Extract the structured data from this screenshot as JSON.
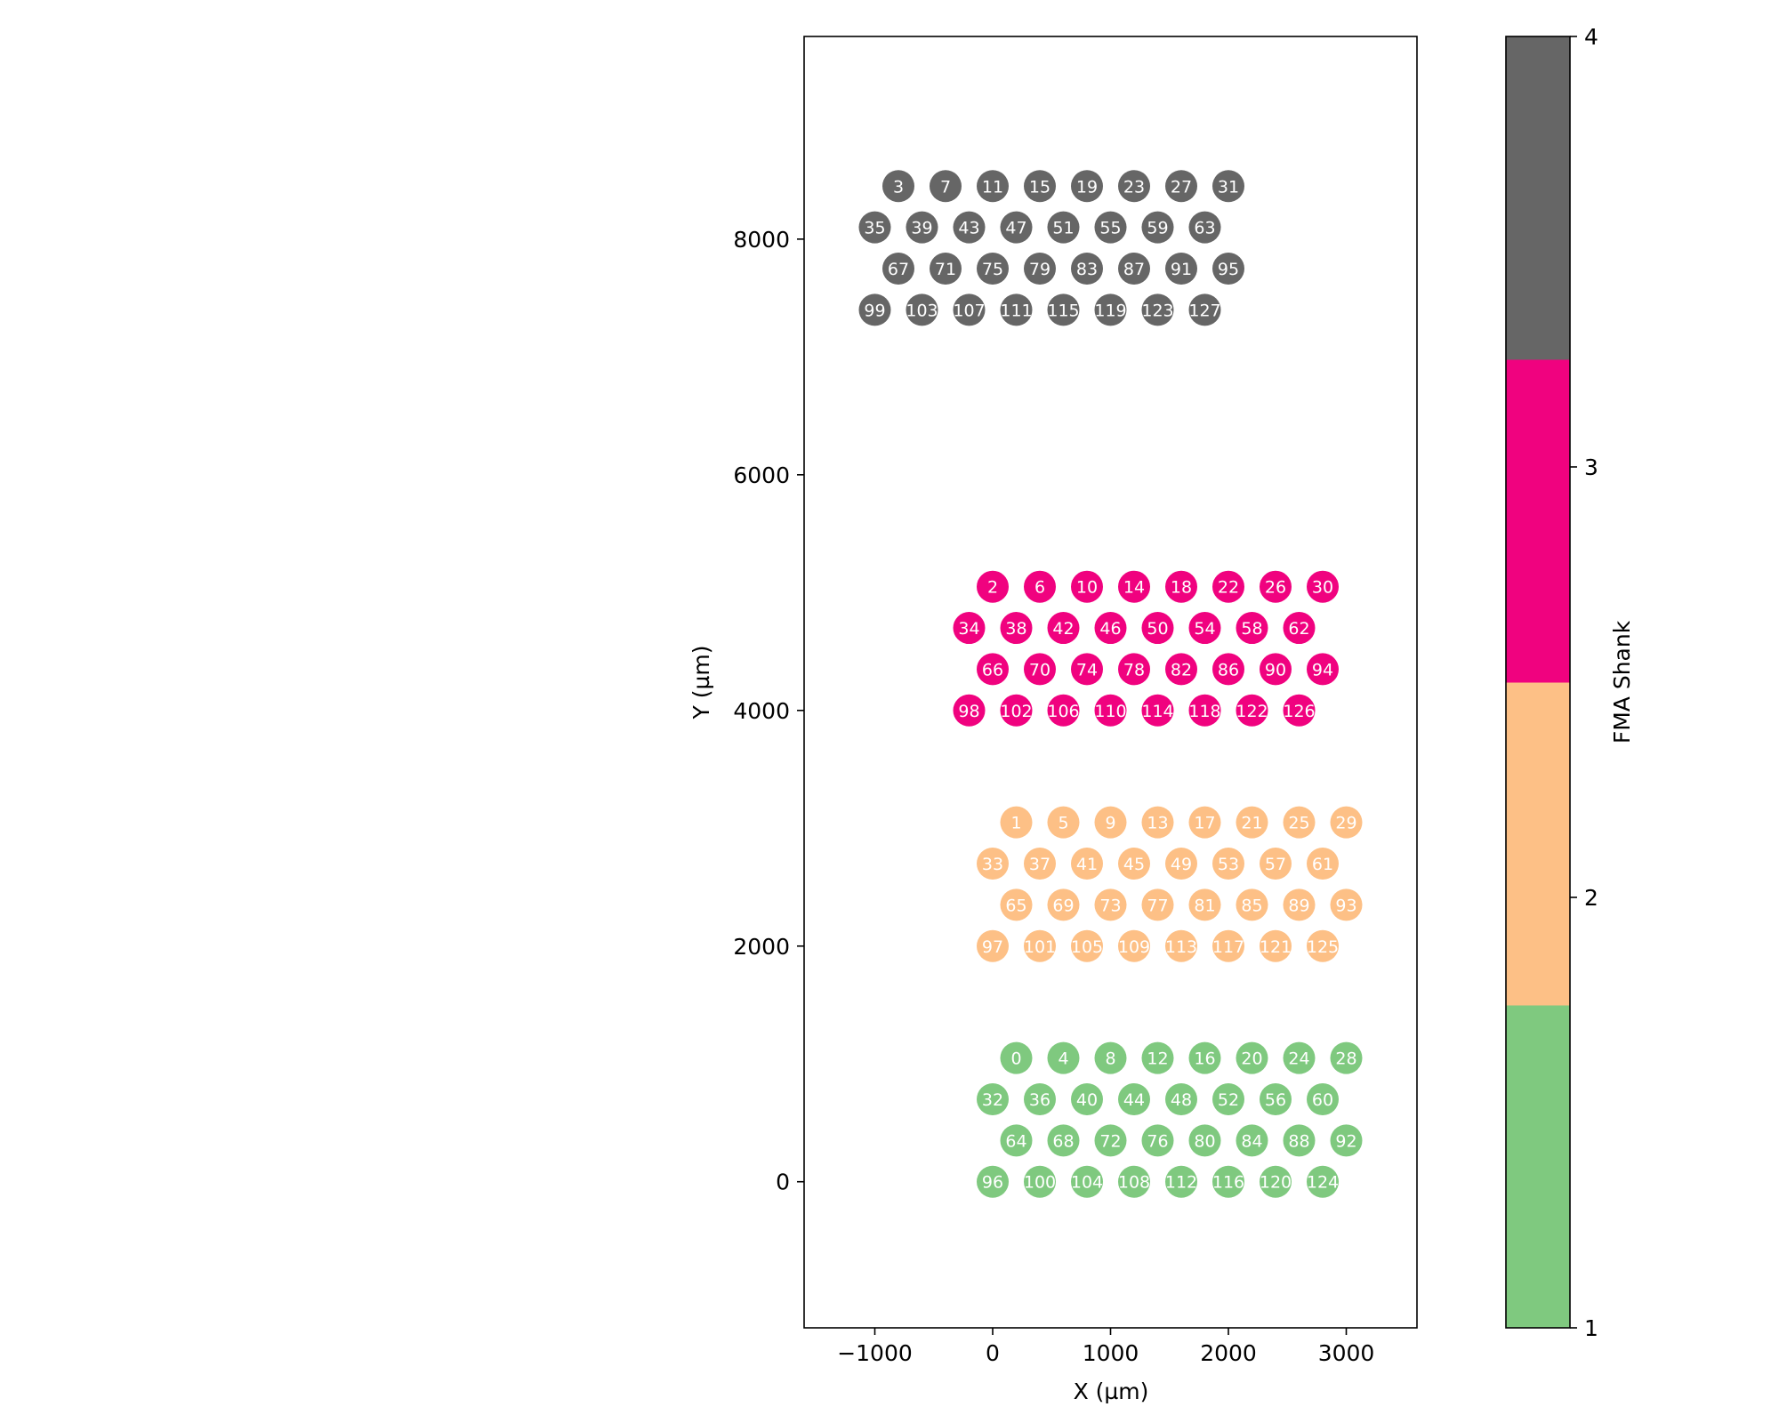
{
  "chart_data": {
    "type": "scatter",
    "title": "",
    "xlabel": "X (µm)",
    "ylabel": "Y (µm)",
    "xlim": [
      -1600,
      3600
    ],
    "ylim": [
      -1240,
      9720
    ],
    "xticks": [
      -1000,
      0,
      1000,
      2000,
      3000
    ],
    "xtick_labels": [
      "−1000",
      "0",
      "1000",
      "2000",
      "3000"
    ],
    "yticks": [
      0,
      2000,
      4000,
      6000,
      8000
    ],
    "ytick_labels": [
      "0",
      "2000",
      "4000",
      "6000",
      "8000"
    ],
    "grid": false,
    "legend": "none",
    "colorbar": {
      "label": "FMA Shank",
      "range": [
        1,
        4
      ],
      "ticks": [
        1,
        2,
        3,
        4
      ],
      "tick_labels": [
        "1",
        "2",
        "3",
        "4"
      ],
      "colors": [
        "#7fc97f",
        "#fdc086",
        "#f0027f",
        "#666666"
      ]
    },
    "shanks": [
      {
        "shank": 1,
        "color": "#7fc97f",
        "points": [
          {
            "ch": "0",
            "x": 200,
            "y": 1050
          },
          {
            "ch": "4",
            "x": 600,
            "y": 1050
          },
          {
            "ch": "8",
            "x": 1000,
            "y": 1050
          },
          {
            "ch": "12",
            "x": 1400,
            "y": 1050
          },
          {
            "ch": "16",
            "x": 1800,
            "y": 1050
          },
          {
            "ch": "20",
            "x": 2200,
            "y": 1050
          },
          {
            "ch": "24",
            "x": 2600,
            "y": 1050
          },
          {
            "ch": "28",
            "x": 3000,
            "y": 1050
          },
          {
            "ch": "32",
            "x": 0,
            "y": 700
          },
          {
            "ch": "36",
            "x": 400,
            "y": 700
          },
          {
            "ch": "40",
            "x": 800,
            "y": 700
          },
          {
            "ch": "44",
            "x": 1200,
            "y": 700
          },
          {
            "ch": "48",
            "x": 1600,
            "y": 700
          },
          {
            "ch": "52",
            "x": 2000,
            "y": 700
          },
          {
            "ch": "56",
            "x": 2400,
            "y": 700
          },
          {
            "ch": "60",
            "x": 2800,
            "y": 700
          },
          {
            "ch": "64",
            "x": 200,
            "y": 350
          },
          {
            "ch": "68",
            "x": 600,
            "y": 350
          },
          {
            "ch": "72",
            "x": 1000,
            "y": 350
          },
          {
            "ch": "76",
            "x": 1400,
            "y": 350
          },
          {
            "ch": "80",
            "x": 1800,
            "y": 350
          },
          {
            "ch": "84",
            "x": 2200,
            "y": 350
          },
          {
            "ch": "88",
            "x": 2600,
            "y": 350
          },
          {
            "ch": "92",
            "x": 3000,
            "y": 350
          },
          {
            "ch": "96",
            "x": 0,
            "y": 0
          },
          {
            "ch": "100",
            "x": 400,
            "y": 0
          },
          {
            "ch": "104",
            "x": 800,
            "y": 0
          },
          {
            "ch": "108",
            "x": 1200,
            "y": 0
          },
          {
            "ch": "112",
            "x": 1600,
            "y": 0
          },
          {
            "ch": "116",
            "x": 2000,
            "y": 0
          },
          {
            "ch": "120",
            "x": 2400,
            "y": 0
          },
          {
            "ch": "124",
            "x": 2800,
            "y": 0
          }
        ]
      },
      {
        "shank": 2,
        "color": "#fdc086",
        "points": [
          {
            "ch": "1",
            "x": 200,
            "y": 3050
          },
          {
            "ch": "5",
            "x": 600,
            "y": 3050
          },
          {
            "ch": "9",
            "x": 1000,
            "y": 3050
          },
          {
            "ch": "13",
            "x": 1400,
            "y": 3050
          },
          {
            "ch": "17",
            "x": 1800,
            "y": 3050
          },
          {
            "ch": "21",
            "x": 2200,
            "y": 3050
          },
          {
            "ch": "25",
            "x": 2600,
            "y": 3050
          },
          {
            "ch": "29",
            "x": 3000,
            "y": 3050
          },
          {
            "ch": "33",
            "x": 0,
            "y": 2700
          },
          {
            "ch": "37",
            "x": 400,
            "y": 2700
          },
          {
            "ch": "41",
            "x": 800,
            "y": 2700
          },
          {
            "ch": "45",
            "x": 1200,
            "y": 2700
          },
          {
            "ch": "49",
            "x": 1600,
            "y": 2700
          },
          {
            "ch": "53",
            "x": 2000,
            "y": 2700
          },
          {
            "ch": "57",
            "x": 2400,
            "y": 2700
          },
          {
            "ch": "61",
            "x": 2800,
            "y": 2700
          },
          {
            "ch": "65",
            "x": 200,
            "y": 2350
          },
          {
            "ch": "69",
            "x": 600,
            "y": 2350
          },
          {
            "ch": "73",
            "x": 1000,
            "y": 2350
          },
          {
            "ch": "77",
            "x": 1400,
            "y": 2350
          },
          {
            "ch": "81",
            "x": 1800,
            "y": 2350
          },
          {
            "ch": "85",
            "x": 2200,
            "y": 2350
          },
          {
            "ch": "89",
            "x": 2600,
            "y": 2350
          },
          {
            "ch": "93",
            "x": 3000,
            "y": 2350
          },
          {
            "ch": "97",
            "x": 0,
            "y": 2000
          },
          {
            "ch": "101",
            "x": 400,
            "y": 2000
          },
          {
            "ch": "105",
            "x": 800,
            "y": 2000
          },
          {
            "ch": "109",
            "x": 1200,
            "y": 2000
          },
          {
            "ch": "113",
            "x": 1600,
            "y": 2000
          },
          {
            "ch": "117",
            "x": 2000,
            "y": 2000
          },
          {
            "ch": "121",
            "x": 2400,
            "y": 2000
          },
          {
            "ch": "125",
            "x": 2800,
            "y": 2000
          }
        ]
      },
      {
        "shank": 3,
        "color": "#f0027f",
        "points": [
          {
            "ch": "2",
            "x": 0,
            "y": 5050
          },
          {
            "ch": "6",
            "x": 400,
            "y": 5050
          },
          {
            "ch": "10",
            "x": 800,
            "y": 5050
          },
          {
            "ch": "14",
            "x": 1200,
            "y": 5050
          },
          {
            "ch": "18",
            "x": 1600,
            "y": 5050
          },
          {
            "ch": "22",
            "x": 2000,
            "y": 5050
          },
          {
            "ch": "26",
            "x": 2400,
            "y": 5050
          },
          {
            "ch": "30",
            "x": 2800,
            "y": 5050
          },
          {
            "ch": "34",
            "x": -200,
            "y": 4700
          },
          {
            "ch": "38",
            "x": 200,
            "y": 4700
          },
          {
            "ch": "42",
            "x": 600,
            "y": 4700
          },
          {
            "ch": "46",
            "x": 1000,
            "y": 4700
          },
          {
            "ch": "50",
            "x": 1400,
            "y": 4700
          },
          {
            "ch": "54",
            "x": 1800,
            "y": 4700
          },
          {
            "ch": "58",
            "x": 2200,
            "y": 4700
          },
          {
            "ch": "62",
            "x": 2600,
            "y": 4700
          },
          {
            "ch": "66",
            "x": 0,
            "y": 4350
          },
          {
            "ch": "70",
            "x": 400,
            "y": 4350
          },
          {
            "ch": "74",
            "x": 800,
            "y": 4350
          },
          {
            "ch": "78",
            "x": 1200,
            "y": 4350
          },
          {
            "ch": "82",
            "x": 1600,
            "y": 4350
          },
          {
            "ch": "86",
            "x": 2000,
            "y": 4350
          },
          {
            "ch": "90",
            "x": 2400,
            "y": 4350
          },
          {
            "ch": "94",
            "x": 2800,
            "y": 4350
          },
          {
            "ch": "98",
            "x": -200,
            "y": 4000
          },
          {
            "ch": "102",
            "x": 200,
            "y": 4000
          },
          {
            "ch": "106",
            "x": 600,
            "y": 4000
          },
          {
            "ch": "110",
            "x": 1000,
            "y": 4000
          },
          {
            "ch": "114",
            "x": 1400,
            "y": 4000
          },
          {
            "ch": "118",
            "x": 1800,
            "y": 4000
          },
          {
            "ch": "122",
            "x": 2200,
            "y": 4000
          },
          {
            "ch": "126",
            "x": 2600,
            "y": 4000
          }
        ]
      },
      {
        "shank": 4,
        "color": "#666666",
        "points": [
          {
            "ch": "3",
            "x": -800,
            "y": 8450
          },
          {
            "ch": "7",
            "x": -400,
            "y": 8450
          },
          {
            "ch": "11",
            "x": 0,
            "y": 8450
          },
          {
            "ch": "15",
            "x": 400,
            "y": 8450
          },
          {
            "ch": "19",
            "x": 800,
            "y": 8450
          },
          {
            "ch": "23",
            "x": 1200,
            "y": 8450
          },
          {
            "ch": "27",
            "x": 1600,
            "y": 8450
          },
          {
            "ch": "31",
            "x": 2000,
            "y": 8450
          },
          {
            "ch": "35",
            "x": -1000,
            "y": 8100
          },
          {
            "ch": "39",
            "x": -600,
            "y": 8100
          },
          {
            "ch": "43",
            "x": -200,
            "y": 8100
          },
          {
            "ch": "47",
            "x": 200,
            "y": 8100
          },
          {
            "ch": "51",
            "x": 600,
            "y": 8100
          },
          {
            "ch": "55",
            "x": 1000,
            "y": 8100
          },
          {
            "ch": "59",
            "x": 1400,
            "y": 8100
          },
          {
            "ch": "63",
            "x": 1800,
            "y": 8100
          },
          {
            "ch": "67",
            "x": -800,
            "y": 7750
          },
          {
            "ch": "71",
            "x": -400,
            "y": 7750
          },
          {
            "ch": "75",
            "x": 0,
            "y": 7750
          },
          {
            "ch": "79",
            "x": 400,
            "y": 7750
          },
          {
            "ch": "83",
            "x": 800,
            "y": 7750
          },
          {
            "ch": "87",
            "x": 1200,
            "y": 7750
          },
          {
            "ch": "91",
            "x": 1600,
            "y": 7750
          },
          {
            "ch": "95",
            "x": 2000,
            "y": 7750
          },
          {
            "ch": "99",
            "x": -1000,
            "y": 7400
          },
          {
            "ch": "103",
            "x": -600,
            "y": 7400
          },
          {
            "ch": "107",
            "x": -200,
            "y": 7400
          },
          {
            "ch": "111",
            "x": 200,
            "y": 7400
          },
          {
            "ch": "115",
            "x": 600,
            "y": 7400
          },
          {
            "ch": "119",
            "x": 1000,
            "y": 7400
          },
          {
            "ch": "123",
            "x": 1400,
            "y": 7400
          },
          {
            "ch": "127",
            "x": 1800,
            "y": 7400
          }
        ]
      }
    ]
  }
}
